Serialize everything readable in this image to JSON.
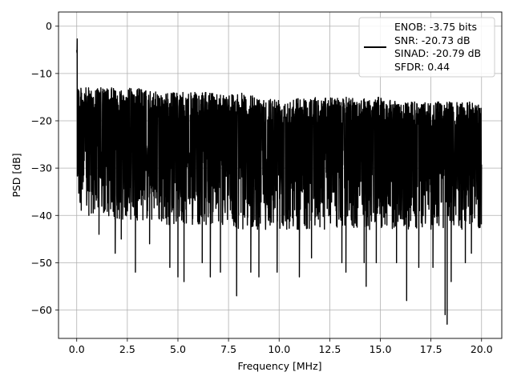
{
  "chart_data": {
    "type": "line",
    "title": "",
    "xlabel": "Frequency [MHz]",
    "ylabel": "PSD [dB]",
    "xlim": [
      -0.9,
      21.0
    ],
    "ylim": [
      -66,
      3
    ],
    "xticks": [
      0.0,
      2.5,
      5.0,
      7.5,
      10.0,
      12.5,
      15.0,
      17.5,
      20.0
    ],
    "xtick_labels": [
      "0.0",
      "2.5",
      "5.0",
      "7.5",
      "10.0",
      "12.5",
      "15.0",
      "17.5",
      "20.0"
    ],
    "yticks": [
      0,
      -10,
      -20,
      -30,
      -40,
      -50,
      -60
    ],
    "ytick_labels": [
      "0",
      "−10",
      "−20",
      "−30",
      "−40",
      "−50",
      "−60"
    ],
    "grid": true,
    "legend_position": "top-right",
    "legend_lines": [
      "ENOB: -3.75 bits",
      "SNR: -20.73 dB",
      "SINAD: -20.79 dB",
      "SFDR: 0.44"
    ],
    "line_color": "#000000",
    "series": [
      {
        "x": [
          0.0,
          0.02,
          0.05,
          0.1,
          0.2,
          0.3,
          0.5,
          1.0,
          2.0,
          3.0,
          4.0,
          5.0,
          6.0,
          7.0,
          8.0,
          9.0,
          10.0,
          11.0,
          12.0,
          13.0,
          14.0,
          15.0,
          16.0,
          17.0,
          18.0,
          19.0,
          20.0
        ],
        "upper": [
          0,
          -7,
          -11,
          -12,
          -13,
          -13,
          -13,
          -13,
          -13,
          -13,
          -14,
          -14,
          -14,
          -14,
          -14,
          -15,
          -15,
          -15,
          -15,
          -15,
          -15,
          -15,
          -16,
          -16,
          -16,
          -16,
          -16
        ],
        "lower": [
          -33,
          -34,
          -36,
          -38,
          -39,
          -39,
          -40,
          -40,
          -41,
          -41,
          -42,
          -42,
          -42,
          -42,
          -43,
          -43,
          -43,
          -43,
          -43,
          -43,
          -43,
          -43,
          -43,
          -43,
          -43,
          -43,
          -43
        ],
        "dips": [
          [
            0.6,
            -40
          ],
          [
            1.1,
            -44
          ],
          [
            1.9,
            -48
          ],
          [
            2.2,
            -45
          ],
          [
            2.9,
            -52
          ],
          [
            3.6,
            -46
          ],
          [
            4.6,
            -51
          ],
          [
            5.0,
            -53
          ],
          [
            5.3,
            -54
          ],
          [
            6.2,
            -50
          ],
          [
            6.6,
            -53
          ],
          [
            7.1,
            -52
          ],
          [
            7.9,
            -57
          ],
          [
            8.6,
            -52
          ],
          [
            9.0,
            -53
          ],
          [
            9.9,
            -52
          ],
          [
            11.0,
            -53
          ],
          [
            11.6,
            -49
          ],
          [
            13.1,
            -50
          ],
          [
            13.3,
            -52
          ],
          [
            14.2,
            -50
          ],
          [
            14.3,
            -55
          ],
          [
            14.8,
            -50
          ],
          [
            15.8,
            -50
          ],
          [
            16.3,
            -58
          ],
          [
            16.9,
            -51
          ],
          [
            17.6,
            -51
          ],
          [
            18.2,
            -61
          ],
          [
            18.3,
            -63
          ],
          [
            18.5,
            -54
          ],
          [
            19.2,
            -50
          ],
          [
            19.5,
            -48
          ]
        ]
      }
    ]
  }
}
